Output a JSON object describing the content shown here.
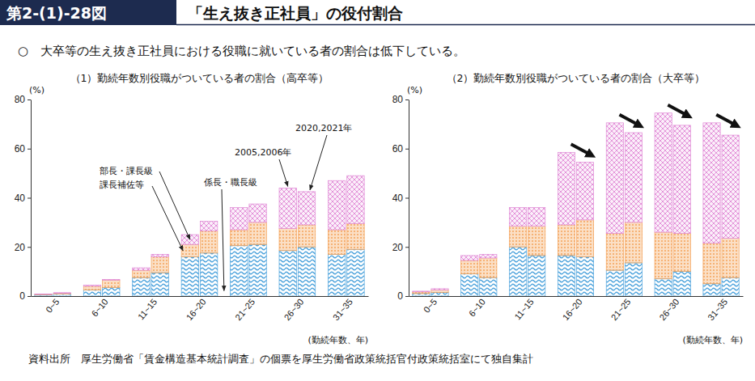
{
  "header": {
    "figure_no": "第2-(1)-28図",
    "title": "「生え抜き正社員」の役付割合",
    "subtitle": "○　大卒等の生え抜き正社員における役職に就いている者の割合は低下している。"
  },
  "chart_data": [
    {
      "type": "bar",
      "stacked": true,
      "grid": false,
      "title": "（1）勤続年数別役職がついている者の割合（高卒等）",
      "ylabel": "(%)",
      "xlabel": "(勤続年数、年)",
      "ylim": [
        0,
        80
      ],
      "yticks": [
        0,
        20,
        40,
        60,
        80
      ],
      "categories": [
        "0~5",
        "6~10",
        "11~15",
        "16~20",
        "21~25",
        "26~30",
        "31~35"
      ],
      "stacks": [
        {
          "series": [
            {
              "color": "#4da3dc",
              "values": [
                0.5,
                2.5,
                7.5,
                16,
                20.5,
                18.5,
                17
              ]
            },
            {
              "color": "#f4a259",
              "values": [
                0.2,
                1.5,
                3,
                5,
                6.5,
                9,
                10
              ]
            },
            {
              "color": "#e08ad6",
              "values": [
                0.1,
                0.5,
                1,
                4,
                9,
                16.5,
                20
              ]
            }
          ]
        },
        {
          "series": [
            {
              "color": "#4da3dc",
              "values": [
                0.8,
                3.5,
                9.5,
                17.5,
                21,
                20,
                19
              ]
            },
            {
              "color": "#f4a259",
              "values": [
                0.3,
                3,
                6.5,
                9,
                9,
                9,
                10.5
              ]
            },
            {
              "color": "#e08ad6",
              "values": [
                0.3,
                0.3,
                1,
                4,
                7.5,
                13.5,
                19.5
              ]
            }
          ]
        }
      ],
      "annotations": [
        "部長・課長級",
        "課長補佐等",
        "係長・職長級",
        "2005,2006年",
        "2020,2021年"
      ]
    },
    {
      "type": "bar",
      "stacked": true,
      "grid": false,
      "title": "（2）勤続年数別役職がついている者の割合（大卒等）",
      "ylabel": "(%)",
      "xlabel": "(勤続年数、年)",
      "ylim": [
        0,
        80
      ],
      "yticks": [
        0,
        20,
        40,
        60,
        80
      ],
      "categories": [
        "0~5",
        "6~10",
        "11~15",
        "16~20",
        "21~25",
        "26~30",
        "31~35"
      ],
      "stacks": [
        {
          "series": [
            {
              "color": "#4da3dc",
              "values": [
                1,
                9,
                20,
                16.5,
                10.5,
                7,
                5
              ]
            },
            {
              "color": "#f4a259",
              "values": [
                0.7,
                5.5,
                8.5,
                12.5,
                15,
                19,
                16.5
              ]
            },
            {
              "color": "#e08ad6",
              "values": [
                0.3,
                2,
                7.5,
                29.5,
                45,
                48.5,
                49
              ]
            }
          ]
        },
        {
          "series": [
            {
              "color": "#4da3dc",
              "values": [
                1.5,
                7.5,
                16.5,
                16,
                13.5,
                10,
                7.5
              ]
            },
            {
              "color": "#f4a259",
              "values": [
                1,
                8,
                12,
                15,
                16.5,
                15.5,
                16
              ]
            },
            {
              "color": "#e08ad6",
              "values": [
                0.5,
                1.5,
                7.5,
                23.5,
                36.5,
                44,
                42
              ]
            }
          ]
        }
      ]
    }
  ],
  "source": "資料出所　厚生労働省「賃金構造基本統計調査」の個票を厚生労働省政策統括官付政策統括室にて独自集計"
}
